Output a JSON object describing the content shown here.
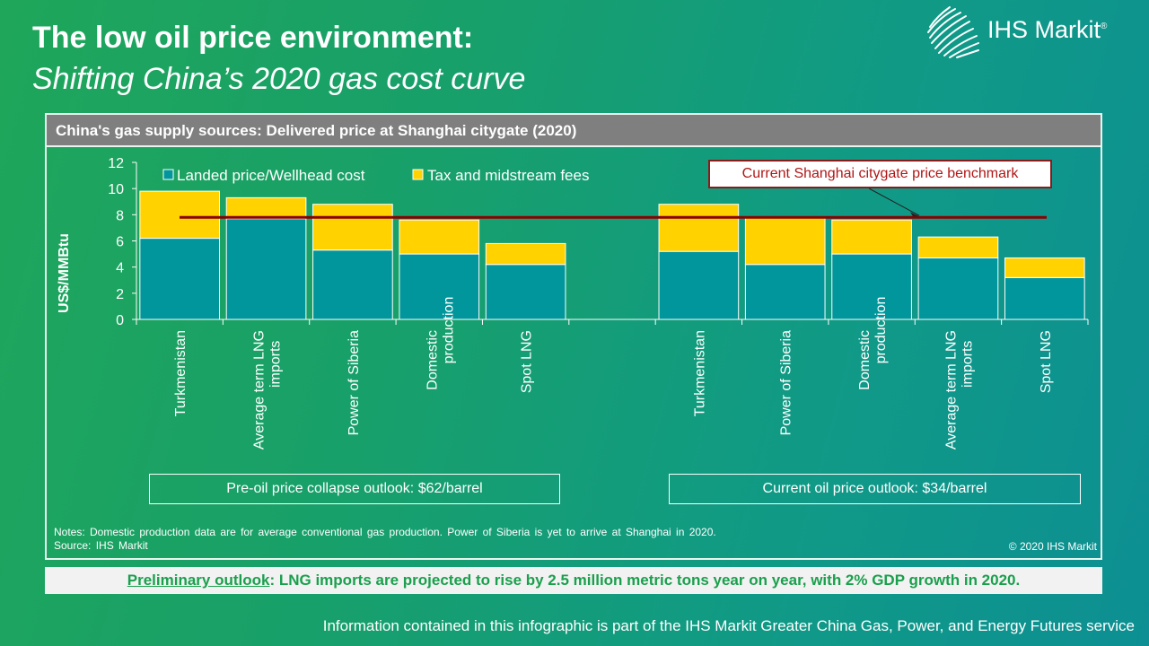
{
  "slide": {
    "title": "The low oil price environment:",
    "subtitle": "Shifting China’s 2020 gas cost curve"
  },
  "logo": {
    "text": "IHS Markit",
    "mark": "®"
  },
  "panel": {
    "header": "China's gas supply sources: Delivered price at Shanghai citygate (2020)",
    "benchmark_label": "Current Shanghai citygate price benchmark",
    "scenario_left": "Pre-oil price collapse outlook: $62/barrel",
    "scenario_right": "Current oil price outlook: $34/barrel",
    "notes_line1": "Notes:  Domestic production data are for average  conventional  gas production.  Power  of Siberia  is yet to arrive  at Shanghai  in 2020.",
    "notes_line2": "Source: IHS Markit",
    "copyright": "© 2020 IHS Markit"
  },
  "footer": {
    "lead": "Preliminary outlook",
    "text": ": LNG imports are projected to rise by 2.5 million metric tons year on year, with 2% GDP growth in 2020."
  },
  "bottom_note": "Information contained in this infographic is part of the IHS Markit Greater China Gas, Power, and Energy Futures service",
  "colors": {
    "landed": "#00969b",
    "tax": "#ffd200",
    "benchmark": "#8b0000"
  },
  "chart_data": {
    "type": "bar",
    "stacked": true,
    "ylabel": "US$/MMBtu",
    "ylim": [
      0,
      12
    ],
    "yticks": [
      0,
      2,
      4,
      6,
      8,
      10,
      12
    ],
    "legend": [
      "Landed price/Wellhead cost",
      "Tax and midstream fees"
    ],
    "benchmark": {
      "label": "Current Shanghai citygate price benchmark",
      "value": 7.8
    },
    "groups": [
      {
        "label": "Pre-oil price collapse outlook: $62/barrel",
        "categories": [
          "Turkmenistan",
          "Average term LNG imports",
          "Power of Siberia",
          "Domestic production",
          "Spot LNG"
        ],
        "landed": [
          6.2,
          7.7,
          5.3,
          5.0,
          4.2
        ],
        "tax": [
          3.6,
          1.6,
          3.5,
          2.6,
          1.6
        ]
      },
      {
        "label": "Current oil price outlook: $34/barrel",
        "categories": [
          "Turkmenistan",
          "Power of Siberia",
          "Domestic production",
          "Average term LNG imports",
          "Spot LNG"
        ],
        "landed": [
          5.2,
          4.2,
          5.0,
          4.7,
          3.2
        ],
        "tax": [
          3.6,
          3.6,
          2.6,
          1.6,
          1.5
        ]
      }
    ]
  }
}
